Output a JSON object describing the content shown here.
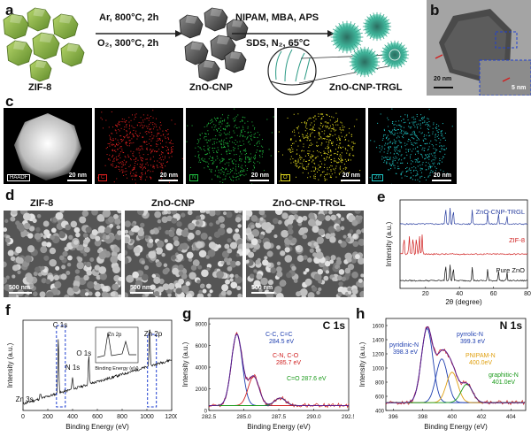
{
  "panels": {
    "a": {
      "label": "a",
      "step1": {
        "line1": "Ar, 800°C, 2h",
        "line2": "O₂, 300°C, 2h"
      },
      "step2": {
        "line1": "NIPAM, MBA, APS",
        "line2": "SDS, N₂, 65°C"
      },
      "names": [
        "ZIF-8",
        "ZnO-CNP",
        "ZnO-CNP-TRGL"
      ],
      "colors": {
        "zif8": "#8fb545",
        "zno": "#5d5d5d",
        "trgl": "#3aa58c"
      }
    },
    "b": {
      "label": "b",
      "scale": "20 nm",
      "inset_scale": "5 nm"
    },
    "c": {
      "label": "c",
      "maps": [
        {
          "tag": "HAADF",
          "scale": "20 nm",
          "color": "#d0d0d0"
        },
        {
          "tag": "C",
          "scale": "20 nm",
          "color": "#e02020"
        },
        {
          "tag": "N",
          "scale": "20 nm",
          "color": "#20c040"
        },
        {
          "tag": "O",
          "scale": "20 nm",
          "color": "#e8e020"
        },
        {
          "tag": "Zn",
          "scale": "20 nm",
          "color": "#20c8c8"
        }
      ]
    },
    "d": {
      "label": "d",
      "titles": [
        "ZIF-8",
        "ZnO-CNP",
        "ZnO-CNP-TRGL"
      ],
      "scale": "500 nm"
    },
    "e": {
      "label": "e",
      "ylabel": "Intensity (a.u.)",
      "xlabel": "2θ (degree)",
      "ticks": [
        "20",
        "40",
        "60",
        "80"
      ],
      "series": [
        "ZnO-CNP-TRGL",
        "ZIF-8",
        "Pure ZnO"
      ]
    },
    "f": {
      "label": "f",
      "ylabel": "Intensity (a.u.)",
      "xlabel": "Binding Energy (eV)",
      "ticks": [
        "0",
        "200",
        "400",
        "600",
        "800",
        "1000",
        "1200"
      ],
      "peaks": [
        "C 1s",
        "Zn 2p",
        "N 1s",
        "O 1s",
        "Zn 3s"
      ],
      "inset": {
        "label": "Zn 2p",
        "xlabel": "Binding Energy (eV)"
      }
    },
    "g": {
      "label": "g",
      "title": "C 1s",
      "ylabel": "Intensity (a.u.)",
      "xlabel": "Binding Energy (eV)",
      "xticks": [
        "282.5",
        "285.0",
        "287.5",
        "290.0",
        "292.5"
      ],
      "yticks": [
        "0",
        "2000",
        "4000",
        "6000",
        "8000"
      ],
      "annotations": [
        {
          "text": "C-C, C=C",
          "sub": "284.5 eV",
          "color": "#1f3fb0"
        },
        {
          "text": "C-N, C-O",
          "sub": "285.7 eV",
          "color": "#d02020"
        },
        {
          "text": "C=O 287.6 eV",
          "sub": "",
          "color": "#1a9a1a"
        }
      ]
    },
    "h": {
      "label": "h",
      "title": "N 1s",
      "ylabel": "Intensity (a.u.)",
      "xlabel": "Binding Energy (eV)",
      "xticks": [
        "396",
        "398",
        "400",
        "402",
        "404"
      ],
      "yticks": [
        "400",
        "600",
        "800",
        "1000",
        "1200",
        "1400",
        "1600"
      ],
      "annotations": [
        {
          "text": "pyridinic-N",
          "sub": "398.3 eV",
          "color": "#1f3fb0"
        },
        {
          "text": "pyrrolic-N",
          "sub": "399.3 eV",
          "color": "#1f3fb0"
        },
        {
          "text": "PNIPAM-N",
          "sub": "400.0eV",
          "color": "#e0a010"
        },
        {
          "text": "graphitic-N",
          "sub": "401.0eV",
          "color": "#1a9a1a"
        }
      ]
    }
  },
  "chart_data": [
    {
      "type": "line",
      "panel": "e",
      "xlabel": "2θ (degree)",
      "ylabel": "Intensity (a.u.)",
      "xlim": [
        5,
        80
      ],
      "series": [
        {
          "name": "ZnO-CNP-TRGL",
          "peaks": [
            31.8,
            34.4,
            36.3,
            47.5,
            56.6,
            62.9,
            67.9
          ]
        },
        {
          "name": "ZIF-8",
          "peaks": [
            7.3,
            10.4,
            12.7,
            14.7,
            16.4,
            18.0
          ]
        },
        {
          "name": "Pure ZnO",
          "peaks": [
            31.8,
            34.4,
            36.3,
            47.5,
            56.6,
            62.9,
            67.9
          ]
        }
      ]
    },
    {
      "type": "line",
      "panel": "f",
      "xlabel": "Binding Energy (eV)",
      "xlim": [
        0,
        1200
      ],
      "peaks": [
        {
          "label": "Zn 3s",
          "x": 140
        },
        {
          "label": "C 1s",
          "x": 285
        },
        {
          "label": "N 1s",
          "x": 399
        },
        {
          "label": "O 1s",
          "x": 531
        },
        {
          "label": "Zn 2p",
          "x": 1022
        }
      ]
    },
    {
      "type": "line",
      "panel": "g",
      "xlim": [
        282.5,
        292.5
      ],
      "ylim": [
        0,
        8500
      ],
      "components": [
        {
          "name": "C-C, C=C",
          "center": 284.5,
          "height": 6600
        },
        {
          "name": "C-N, C-O",
          "center": 285.7,
          "height": 2700
        },
        {
          "name": "C=O",
          "center": 287.6,
          "height": 700
        }
      ]
    },
    {
      "type": "line",
      "panel": "h",
      "xlim": [
        395.5,
        405
      ],
      "ylim": [
        400,
        1700
      ],
      "components": [
        {
          "name": "pyridinic-N",
          "center": 398.3,
          "height": 1050
        },
        {
          "name": "pyrrolic-N",
          "center": 399.3,
          "height": 620
        },
        {
          "name": "PNIPAM-N",
          "center": 400.0,
          "height": 430
        },
        {
          "name": "graphitic-N",
          "center": 401.0,
          "height": 260
        }
      ]
    }
  ]
}
